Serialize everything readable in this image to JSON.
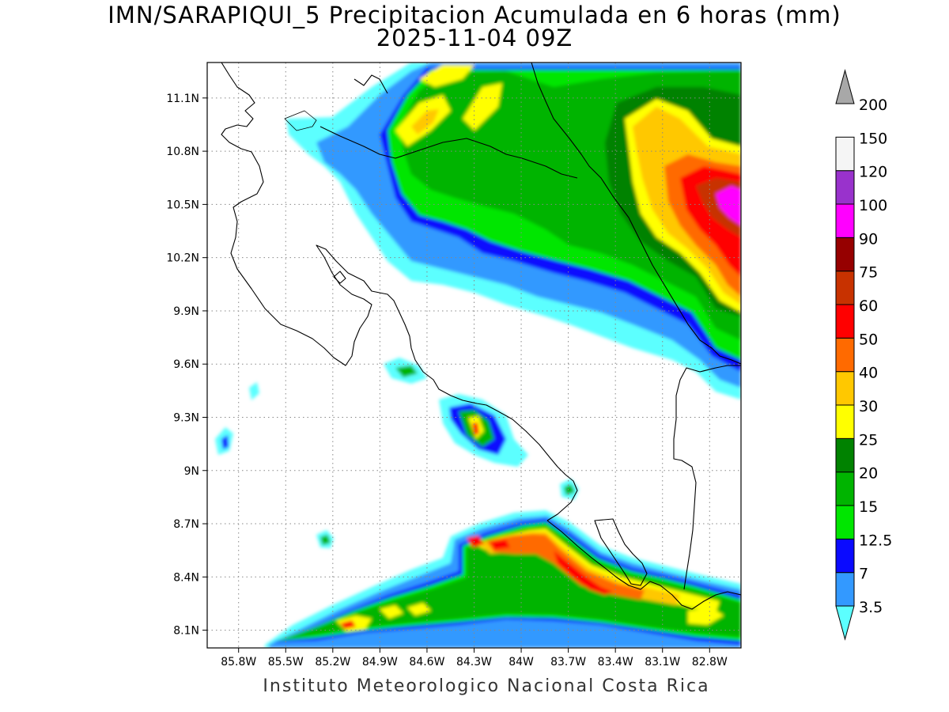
{
  "title": {
    "line1": "IMN/SARAPIQUI_5 Precipitacion Acumulada en 6 horas (mm)",
    "line2": "2025-11-04 09Z"
  },
  "footer": "Instituto Meteorologico Nacional Costa Rica",
  "map": {
    "lon_range": [
      -86.0,
      -82.6
    ],
    "lat_range": [
      8.0,
      11.3
    ],
    "lat_labels": [
      "11.1N",
      "10.8N",
      "10.5N",
      "10.2N",
      "9.9N",
      "9.6N",
      "9.3N",
      "9N",
      "8.7N",
      "8.4N",
      "8.1N"
    ],
    "lat_values": [
      11.1,
      10.8,
      10.5,
      10.2,
      9.9,
      9.6,
      9.3,
      9.0,
      8.7,
      8.4,
      8.1
    ],
    "lon_labels": [
      "85.8W",
      "85.5W",
      "85.2W",
      "84.9W",
      "84.6W",
      "84.3W",
      "84W",
      "83.7W",
      "83.4W",
      "83.1W",
      "82.8W"
    ],
    "lon_values": [
      -85.8,
      -85.5,
      -85.2,
      -84.9,
      -84.6,
      -84.3,
      -84.0,
      -83.7,
      -83.4,
      -83.1,
      -82.8
    ],
    "grid": true
  },
  "colorbar": {
    "labels": [
      "3.5",
      "7",
      "12.5",
      "15",
      "20",
      "25",
      "30",
      "40",
      "50",
      "60",
      "75",
      "90",
      "100",
      "120",
      "150",
      "200"
    ],
    "colors": [
      "#5cffff",
      "#3399ff",
      "#0a0aff",
      "#00e600",
      "#00b400",
      "#008200",
      "#ffff00",
      "#ffc800",
      "#ff6a00",
      "#ff0000",
      "#c83200",
      "#960000",
      "#ff00ff",
      "#9932cc",
      "#f5f5f5",
      "#a8a8a8"
    ],
    "units": "mm"
  }
}
